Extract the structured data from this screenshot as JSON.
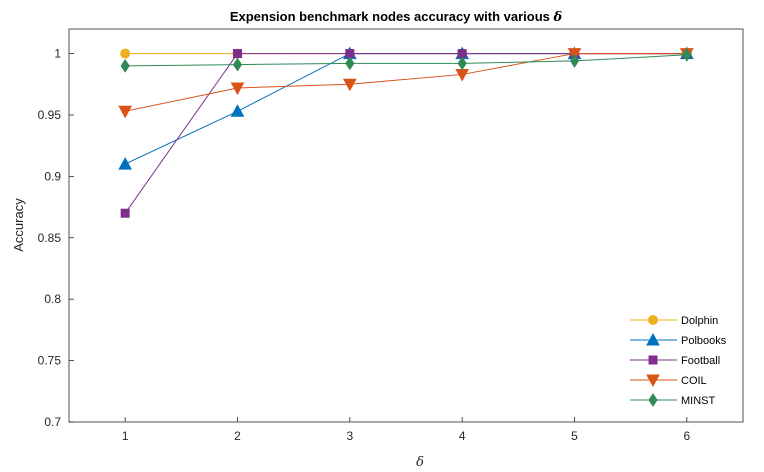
{
  "chart_data": {
    "type": "line",
    "title": "Expension benchmark nodes accuracy with various",
    "title_symbol": "δ",
    "xlabel": "δ",
    "ylabel": "Accuracy",
    "x": [
      1,
      2,
      3,
      4,
      5,
      6
    ],
    "xlim": [
      0.5,
      6.5
    ],
    "ylim": [
      0.7,
      1.02
    ],
    "xticks": [
      "1",
      "2",
      "3",
      "4",
      "5",
      "6"
    ],
    "yticks": [
      "0.7",
      "0.75",
      "0.8",
      "0.85",
      "0.9",
      "0.95",
      "1"
    ],
    "ytick_values": [
      0.7,
      0.75,
      0.8,
      0.85,
      0.9,
      0.95,
      1.0
    ],
    "grid": false,
    "legend_position": "bottom-right",
    "series": [
      {
        "name": "Dolphin",
        "values": [
          1.0,
          1.0,
          1.0,
          1.0,
          1.0,
          1.0
        ],
        "color": "#EDB120",
        "marker": "circle"
      },
      {
        "name": "Polbooks",
        "values": [
          0.91,
          0.953,
          1.0,
          1.0,
          1.0,
          1.0
        ],
        "color": "#0072BD",
        "marker": "triangle-up"
      },
      {
        "name": "Football",
        "values": [
          0.87,
          1.0,
          1.0,
          1.0,
          1.0,
          1.0
        ],
        "color": "#7E2F8E",
        "marker": "square"
      },
      {
        "name": "COIL",
        "values": [
          0.953,
          0.972,
          0.975,
          0.983,
          1.0,
          1.0
        ],
        "color": "#D95319",
        "marker": "triangle-down"
      },
      {
        "name": "MINST",
        "values": [
          0.99,
          0.991,
          0.992,
          0.992,
          0.994,
          0.999
        ],
        "color": "#2E8B57",
        "marker": "diamond"
      }
    ]
  }
}
